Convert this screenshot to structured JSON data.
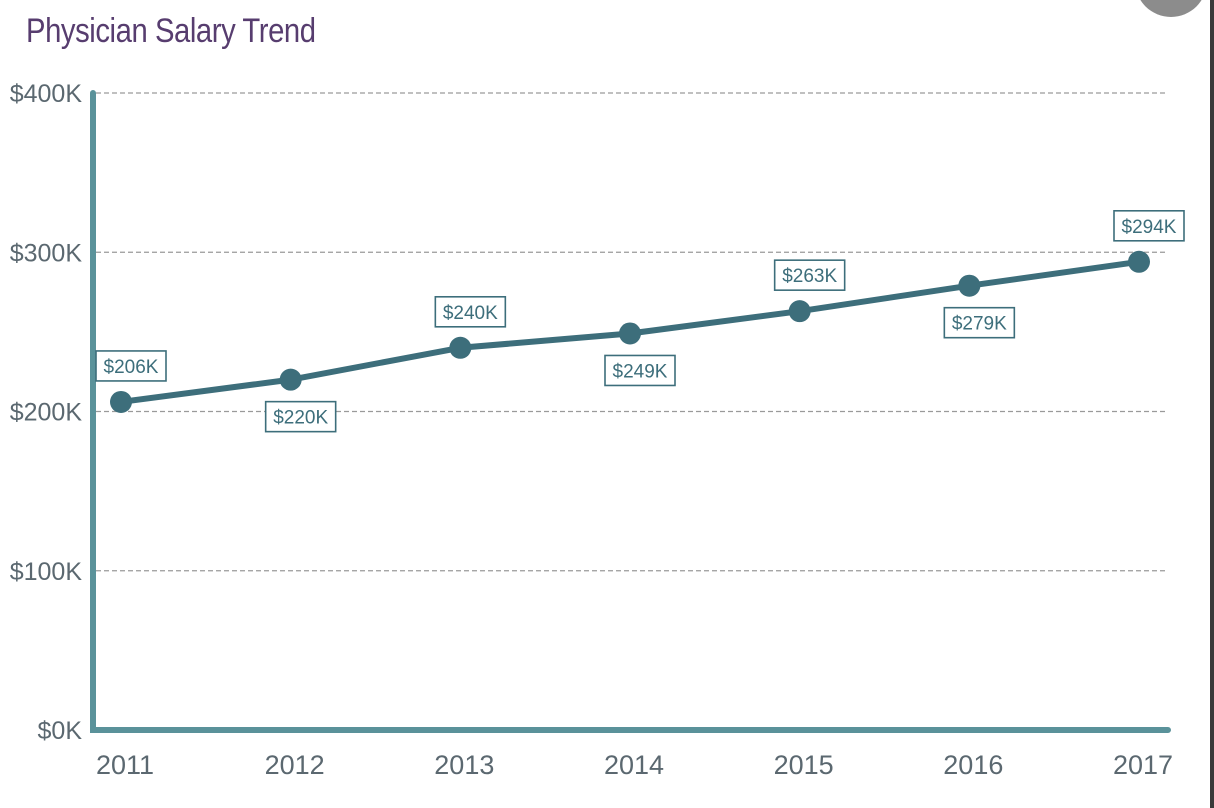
{
  "chart_data": {
    "type": "line",
    "title": "Physician Salary Trend",
    "xlabel": "",
    "ylabel": "",
    "categories": [
      "2011",
      "2012",
      "2013",
      "2014",
      "2015",
      "2016",
      "2017"
    ],
    "series": [
      {
        "name": "Physician Salary",
        "values": [
          206,
          220,
          240,
          249,
          263,
          279,
          294
        ],
        "labels": [
          "$206K",
          "$220K",
          "$240K",
          "$249K",
          "$263K",
          "$279K",
          "$294K"
        ],
        "label_positions": [
          "above",
          "below",
          "above",
          "below",
          "above",
          "below",
          "above"
        ]
      }
    ],
    "ylim": [
      0,
      400
    ],
    "yticks": [
      0,
      100,
      200,
      300,
      400
    ],
    "ytick_labels": [
      "$0K",
      "$100K",
      "$200K",
      "$300K",
      "$400K"
    ],
    "grid": true,
    "legend": "none",
    "colors": {
      "title": "#573d6f",
      "line": "#3d6e7b",
      "axis": "#5a929a",
      "tick_text": "#5b6870",
      "grid": "#9a9a9a"
    }
  }
}
